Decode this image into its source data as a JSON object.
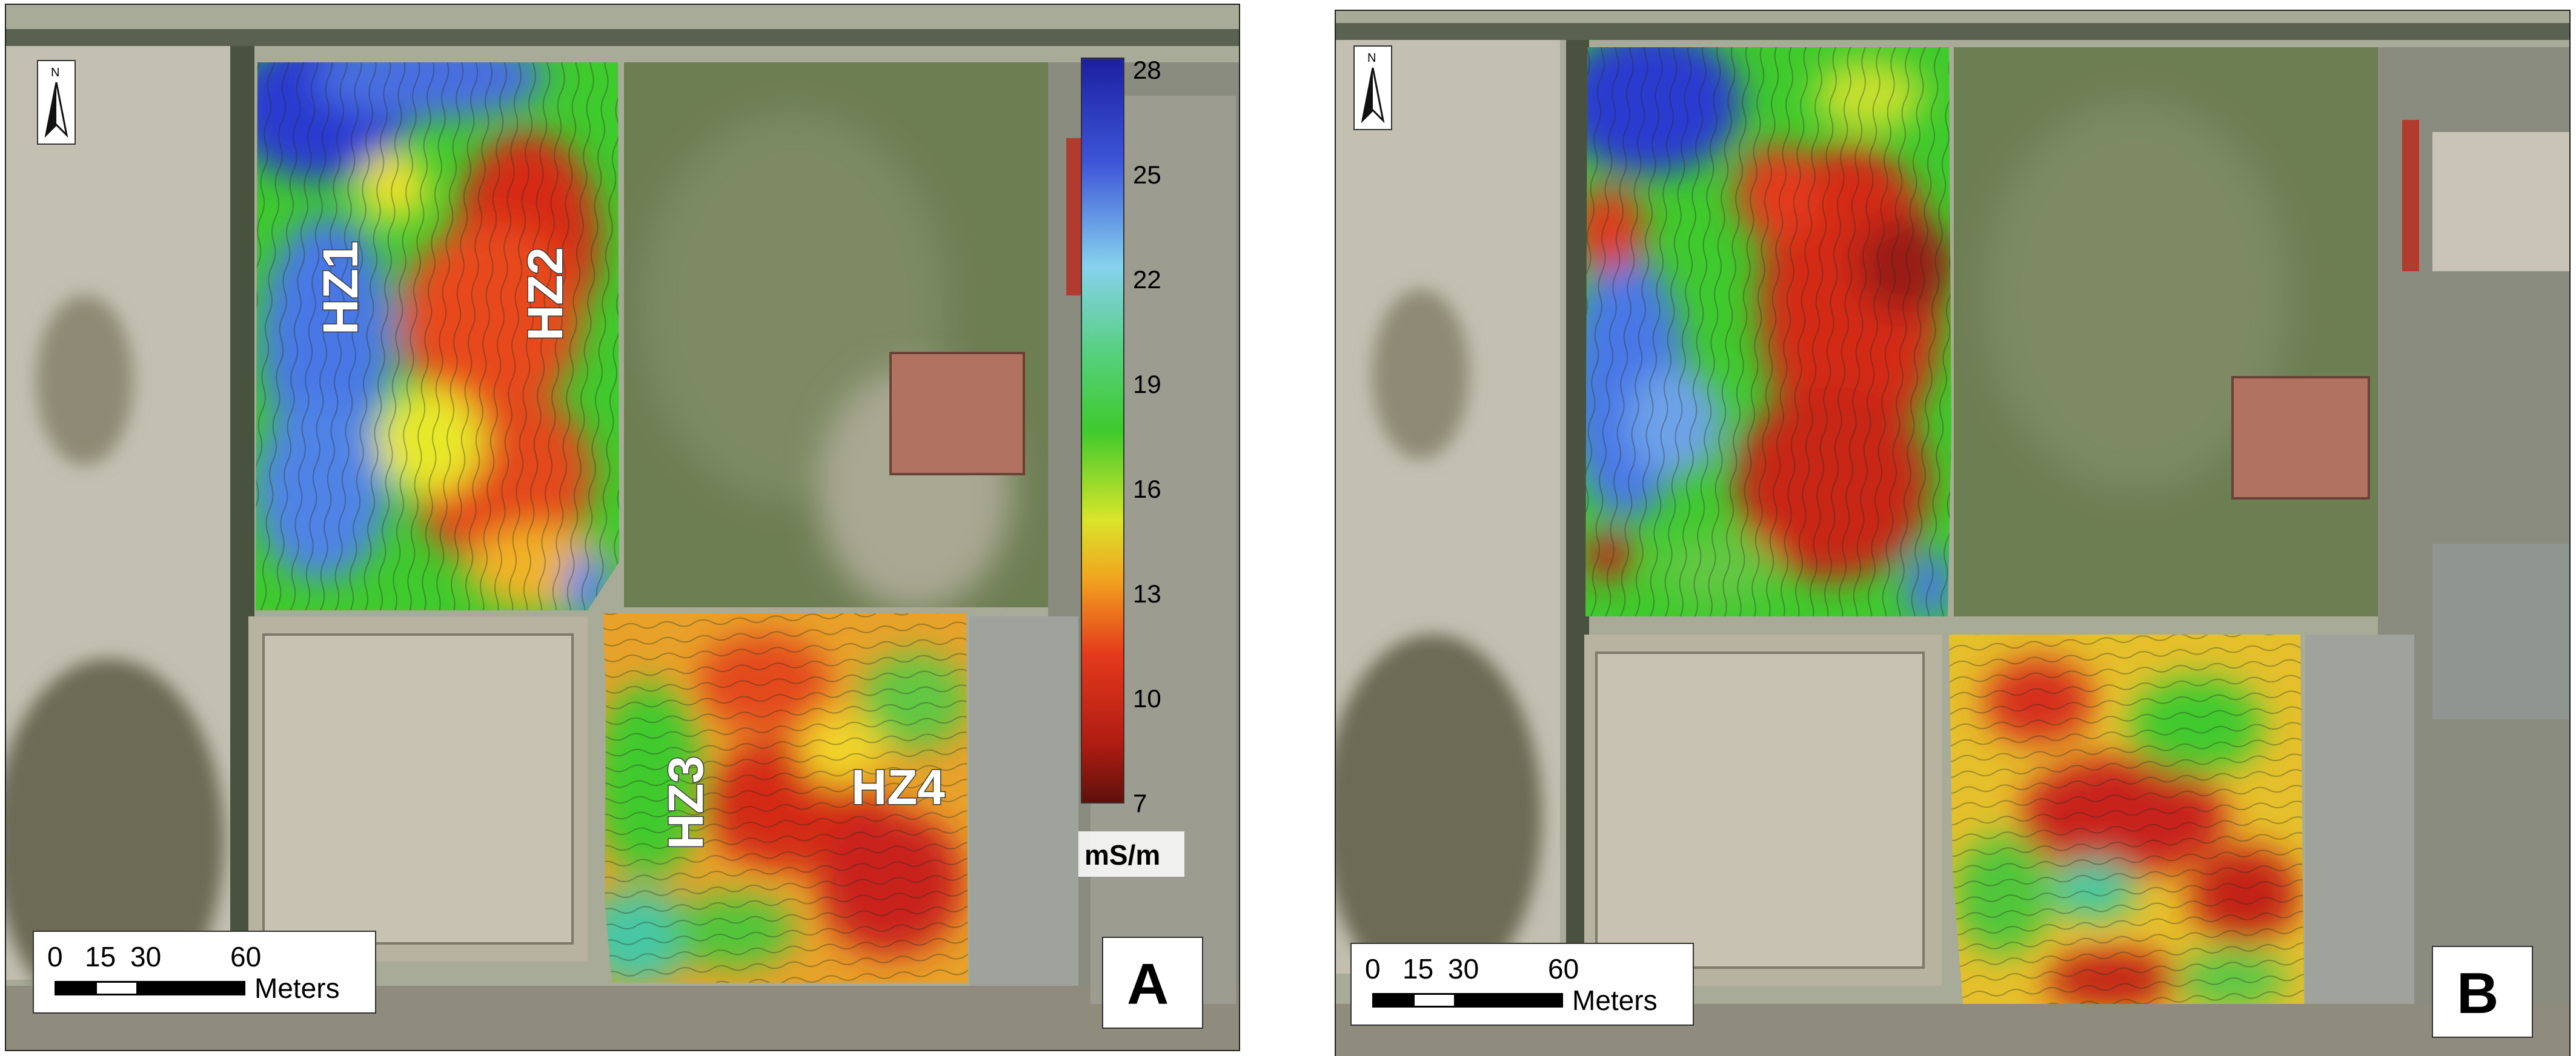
{
  "panels": [
    {
      "letter": "A",
      "zones": [
        "HZ1",
        "HZ2",
        "HZ3",
        "HZ4"
      ],
      "legend": {
        "unit": "mS/m",
        "ticks": [
          "28",
          "25",
          "22",
          "19",
          "16",
          "13",
          "10",
          "7"
        ]
      },
      "scale_bar": {
        "ticks": [
          "0",
          "15",
          "30",
          "60"
        ],
        "unit": "Meters"
      },
      "north": "N"
    },
    {
      "letter": "B",
      "scale_bar": {
        "ticks": [
          "0",
          "15",
          "30",
          "60"
        ],
        "unit": "Meters"
      },
      "north": "N"
    }
  ],
  "legend_colors": {
    "top": "#1b1fa0",
    "upper": "#4a78e6",
    "mid_upper": "#7fd4ef",
    "mid": "#34c43a",
    "mid_lower": "#e8e82a",
    "lower": "#e33a1c",
    "bottom": "#6e1410"
  }
}
